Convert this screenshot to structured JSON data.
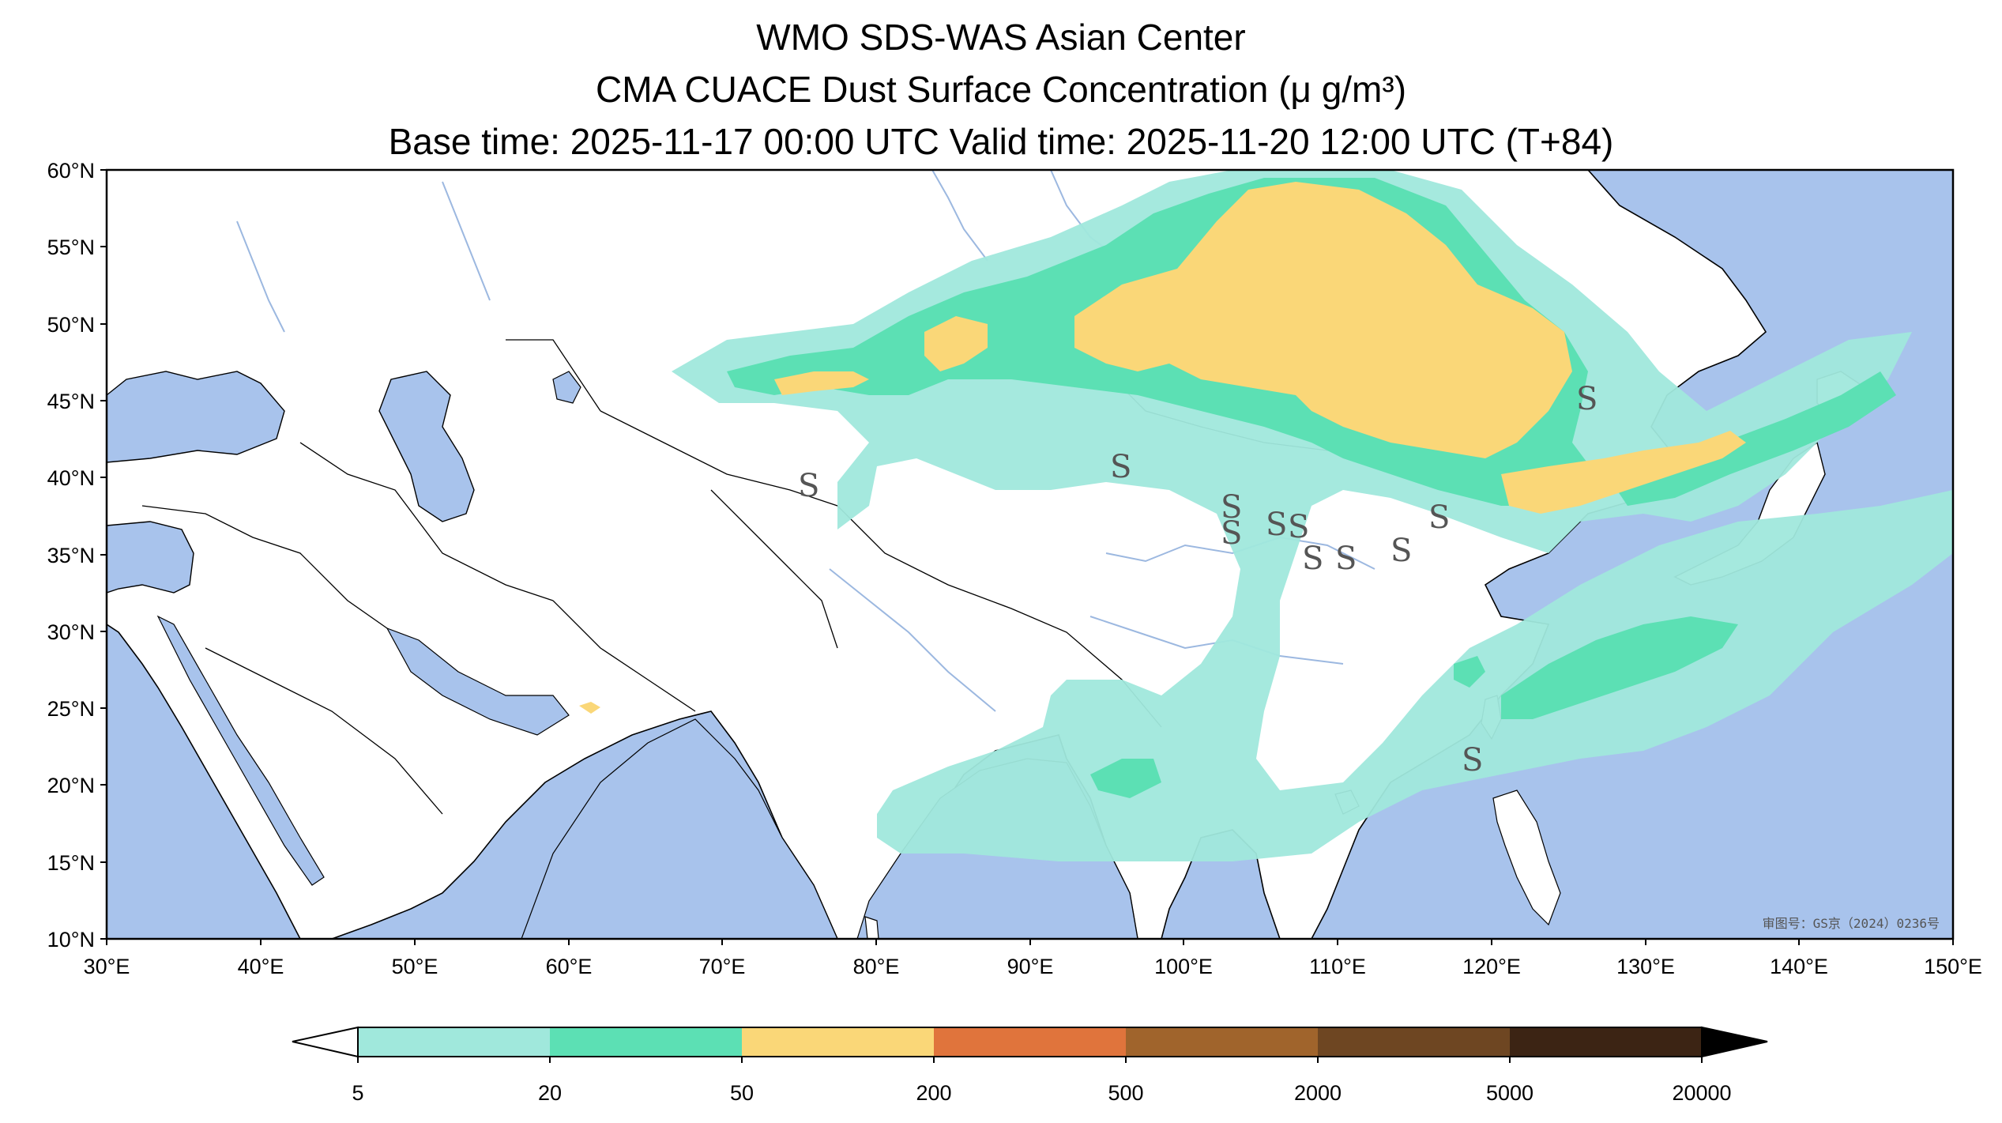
{
  "title": {
    "line1": "WMO SDS-WAS Asian Center",
    "line2": "CMA CUACE Dust Surface Concentration (μ g/m³)",
    "line3": "Base time: 2025-11-17 00:00 UTC Valid time: 2025-11-20 12:00 UTC (T+84)"
  },
  "map": {
    "lon_range": [
      30,
      150
    ],
    "lat_range": [
      10,
      60
    ],
    "lat_ticks": [
      "60°N",
      "55°N",
      "50°N",
      "45°N",
      "40°N",
      "35°N",
      "30°N",
      "25°N",
      "20°N",
      "15°N",
      "10°N"
    ],
    "lon_ticks": [
      "30°E",
      "40°E",
      "50°E",
      "60°E",
      "70°E",
      "80°E",
      "90°E",
      "100°E",
      "110°E",
      "120°E",
      "130°E",
      "140°E",
      "150°E"
    ],
    "approval_stamp": "审图号：GS京（2024）0236号",
    "dust_storm_symbol": "S",
    "colors": {
      "ocean": "#a8c3ec",
      "land": "#ffffff",
      "border": "#000000",
      "river": "#9cb8e0"
    }
  },
  "colorbar": {
    "levels": [
      "5",
      "20",
      "50",
      "200",
      "500",
      "2000",
      "5000",
      "20000"
    ],
    "colors": [
      "#a0e8dc",
      "#5ce0b4",
      "#fad778",
      "#e0743c",
      "#a0642c",
      "#6e4622",
      "#3c2414"
    ]
  }
}
